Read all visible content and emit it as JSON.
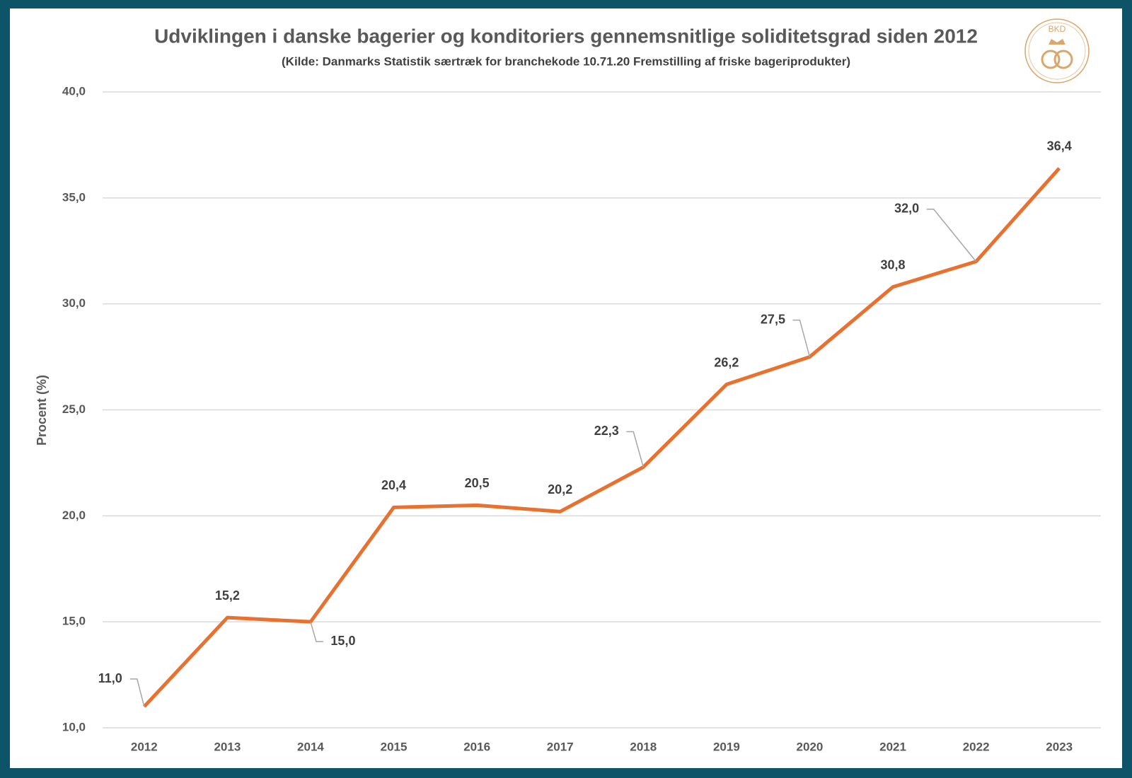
{
  "chart_data": {
    "type": "line",
    "title": "Udviklingen i danske bagerier og konditoriers gennemsnitlige soliditetsgrad siden 2012",
    "subtitle": "(Kilde: Danmarks Statistik særtræk for branchekode 10.71.20 Fremstilling af friske bageriprodukter)",
    "logo": "BKD",
    "y_label": "Procent (%)",
    "categories": [
      "2012",
      "2013",
      "2014",
      "2015",
      "2016",
      "2017",
      "2018",
      "2019",
      "2020",
      "2021",
      "2022",
      "2023"
    ],
    "values": [
      11.0,
      15.2,
      15.0,
      20.4,
      20.5,
      20.2,
      22.3,
      26.2,
      27.5,
      30.8,
      32.0,
      36.4
    ],
    "value_labels": [
      "11,0",
      "15,2",
      "15,0",
      "20,4",
      "20,5",
      "20,2",
      "22,3",
      "26,2",
      "27,5",
      "30,8",
      "32,0",
      "36,4"
    ],
    "color": "#e8712f",
    "ylim": [
      10,
      40
    ],
    "yticks": [
      {
        "value": 10,
        "label": "10,0"
      },
      {
        "value": 15,
        "label": "15,0"
      },
      {
        "value": 20,
        "label": "20,0"
      },
      {
        "value": 25,
        "label": "25,0"
      },
      {
        "value": 30,
        "label": "30,0"
      },
      {
        "value": 35,
        "label": "35,0"
      },
      {
        "value": 40,
        "label": "40,0"
      }
    ],
    "grid": true
  }
}
